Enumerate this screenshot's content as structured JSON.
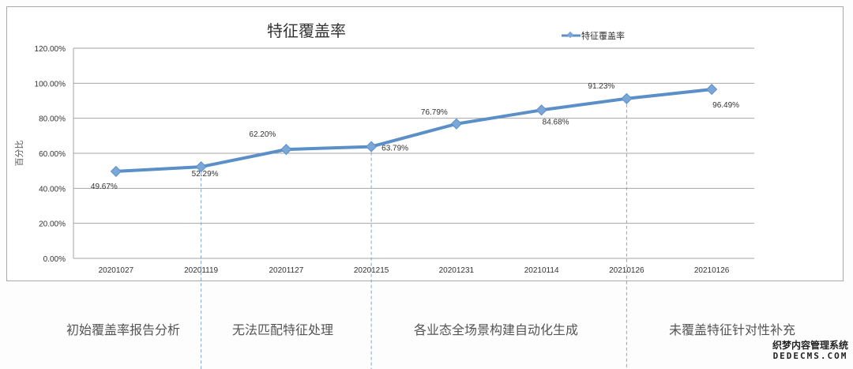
{
  "chart_data": {
    "type": "line",
    "title": "特征覆盖率",
    "xlabel": "",
    "ylabel": "百分比",
    "categories": [
      "20201027",
      "20201119",
      "20201127",
      "20201215",
      "20201231",
      "20210114",
      "20210126",
      "20210126"
    ],
    "series": [
      {
        "name": "特征覆盖率",
        "color": "#5b8fc7",
        "values": [
          49.67,
          52.29,
          62.2,
          63.79,
          76.79,
          84.68,
          91.23,
          96.49
        ],
        "labels": [
          "49.67%",
          "52.29%",
          "62.20%",
          "63.79%",
          "76.79%",
          "84.68%",
          "91.23%",
          "96.49%"
        ]
      }
    ],
    "ylim": [
      0,
      120
    ],
    "yticks": [
      "0.00%",
      "20.00%",
      "40.00%",
      "60.00%",
      "80.00%",
      "100.00%",
      "120.00%"
    ],
    "grid": true,
    "legend_position": "top-right",
    "phase_dividers_after_categories": [
      "20201119",
      "20201215",
      "20210126"
    ]
  },
  "legend": {
    "label": "特征覆盖率"
  },
  "phases": [
    {
      "label": "初始覆盖率报告分析"
    },
    {
      "label": "无法匹配特征处理"
    },
    {
      "label": "各业态全场景构建自动化生成"
    },
    {
      "label": "未覆盖特征针对性补充"
    }
  ],
  "watermark": {
    "line1": "织梦内容管理系统",
    "line2": "DEDECMS.COM"
  }
}
